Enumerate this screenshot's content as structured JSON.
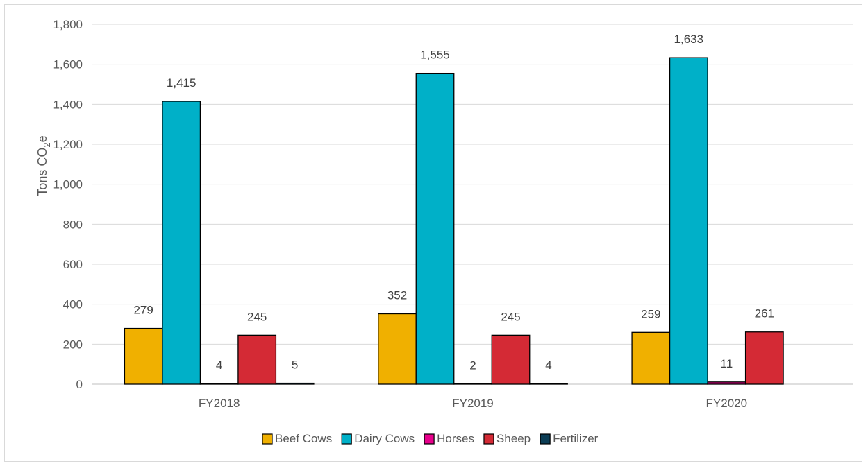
{
  "chart_data": {
    "type": "bar",
    "title": "",
    "xlabel": "",
    "ylabel": "Tons CO",
    "ylabel_subscript": "2",
    "ylabel_suffix": "e",
    "categories": [
      "FY2018",
      "FY2019",
      "FY2020"
    ],
    "ylim": [
      0,
      1800
    ],
    "yticks": [
      0,
      200,
      400,
      600,
      800,
      1000,
      1200,
      1400,
      1600,
      1800
    ],
    "ytick_labels": [
      "0",
      "200",
      "400",
      "600",
      "800",
      "1,000",
      "1,200",
      "1,400",
      "1,600",
      "1,800"
    ],
    "grid": true,
    "legend_position": "bottom",
    "series": [
      {
        "name": "Beef Cows",
        "color": "#F0B000",
        "values": [
          279,
          352,
          259
        ],
        "labels": [
          "279",
          "352",
          "259"
        ]
      },
      {
        "name": "Dairy Cows",
        "color": "#00B0C8",
        "values": [
          1415,
          1555,
          1633
        ],
        "labels": [
          "1,415",
          "1,555",
          "1,633"
        ]
      },
      {
        "name": "Horses",
        "color": "#E8008C",
        "values": [
          4,
          2,
          11
        ],
        "labels": [
          "4",
          "2",
          "11"
        ]
      },
      {
        "name": "Sheep",
        "color": "#D42A35",
        "values": [
          245,
          245,
          261
        ],
        "labels": [
          "245",
          "245",
          "261"
        ]
      },
      {
        "name": "Fertilizer",
        "color": "#0B3D55",
        "values": [
          5,
          4,
          null
        ],
        "labels": [
          "5",
          "4",
          ""
        ]
      }
    ]
  }
}
